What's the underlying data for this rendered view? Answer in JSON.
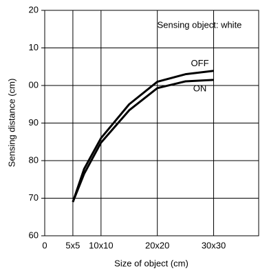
{
  "chart_data": {
    "type": "line",
    "annotation": "Sensing object: white",
    "xlabel": "Size of object (cm)",
    "ylabel": "Sensing distance (cm)",
    "x": [
      5,
      7,
      10,
      15,
      20,
      25,
      30
    ],
    "series": [
      {
        "name": "OFF",
        "color": "#000000",
        "values": [
          69,
          77.8,
          86,
          95,
          101,
          103,
          103.9
        ]
      },
      {
        "name": "ON",
        "color": "#000000",
        "values": [
          69,
          76.5,
          84.8,
          93.4,
          99.3,
          101.1,
          101.5
        ]
      }
    ],
    "xlim": [
      0,
      38
    ],
    "xticks": [
      0,
      {
        "value": 5,
        "label": "5x5"
      },
      {
        "value": 10,
        "label": "10x10"
      },
      {
        "value": 20,
        "label": "20x20"
      },
      {
        "value": 30,
        "label": "30x30"
      }
    ],
    "ylim": [
      60,
      120
    ],
    "yticks": [
      60,
      70,
      80,
      90,
      {
        "value": 100,
        "label": "00"
      },
      {
        "value": 110,
        "label": "10"
      },
      {
        "value": 120,
        "label": "20"
      }
    ],
    "grid": true
  }
}
